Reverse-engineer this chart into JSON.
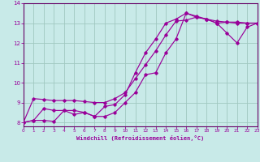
{
  "xlabel": "Windchill (Refroidissement éolien,°C)",
  "background_color": "#c8eae8",
  "grid_color": "#a0c8c0",
  "line_color": "#990099",
  "spine_color": "#660066",
  "xlim": [
    0,
    23
  ],
  "ylim": [
    7.8,
    14.0
  ],
  "xticks": [
    0,
    1,
    2,
    3,
    4,
    5,
    6,
    7,
    8,
    9,
    10,
    11,
    12,
    13,
    14,
    15,
    16,
    17,
    18,
    19,
    20,
    21,
    22,
    23
  ],
  "yticks": [
    8,
    9,
    10,
    11,
    12,
    13,
    14
  ],
  "series1_x": [
    0,
    1,
    2,
    3,
    4,
    5,
    6,
    7,
    8,
    9,
    10,
    11,
    12,
    13,
    14,
    15,
    16,
    17,
    18,
    19,
    20,
    21,
    22,
    23
  ],
  "series1_y": [
    8.0,
    9.2,
    9.15,
    9.1,
    9.1,
    9.1,
    9.05,
    9.0,
    9.0,
    9.2,
    9.5,
    10.2,
    10.9,
    11.6,
    12.4,
    13.1,
    13.15,
    13.3,
    13.2,
    13.1,
    13.05,
    13.05,
    13.0,
    13.0
  ],
  "series2_x": [
    0,
    1,
    2,
    3,
    4,
    5,
    6,
    7,
    8,
    9,
    10,
    11,
    12,
    13,
    14,
    15,
    16,
    17,
    18,
    19,
    20,
    21,
    22,
    23
  ],
  "series2_y": [
    8.0,
    8.1,
    8.1,
    8.05,
    8.6,
    8.6,
    8.5,
    8.3,
    8.3,
    8.5,
    9.0,
    9.5,
    10.4,
    10.5,
    11.5,
    12.2,
    13.5,
    13.3,
    13.2,
    13.0,
    13.05,
    13.0,
    13.0,
    13.0
  ],
  "series3_x": [
    0,
    1,
    2,
    3,
    4,
    5,
    6,
    7,
    8,
    9,
    10,
    11,
    12,
    13,
    14,
    15,
    16,
    17,
    18,
    19,
    20,
    21,
    22,
    23
  ],
  "series3_y": [
    8.0,
    8.1,
    8.7,
    8.6,
    8.6,
    8.4,
    8.5,
    8.3,
    8.8,
    8.9,
    9.4,
    10.5,
    11.5,
    12.2,
    13.0,
    13.2,
    13.5,
    13.35,
    13.2,
    13.0,
    12.5,
    12.0,
    12.8,
    13.0
  ]
}
